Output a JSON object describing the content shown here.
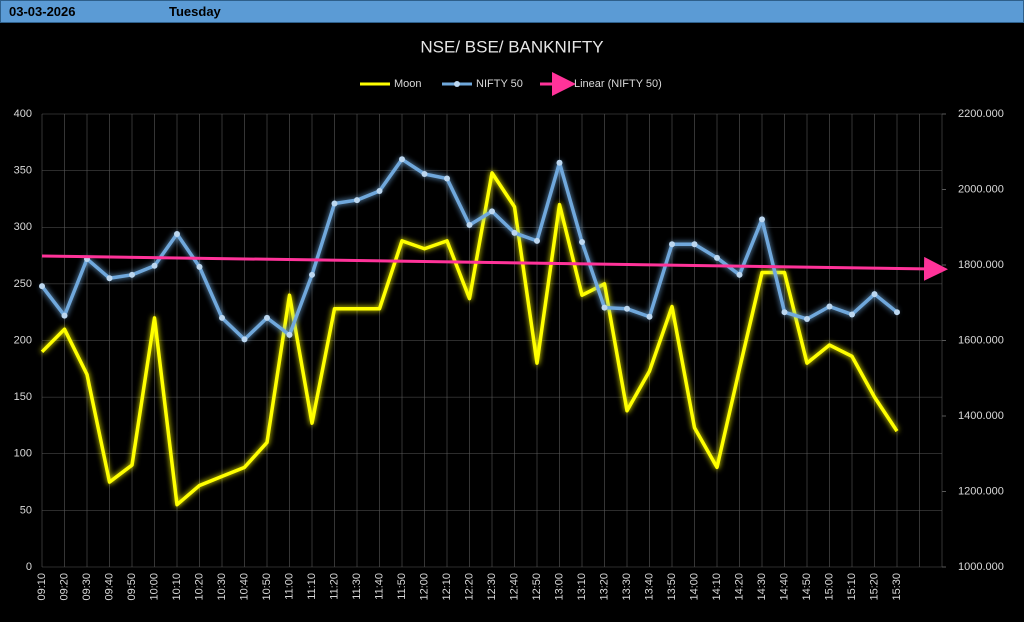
{
  "header": {
    "date": "03-03-2026",
    "day": "Tuesday"
  },
  "chart_data": {
    "type": "line",
    "title": "NSE/ BSE/ BANKNIFTY",
    "categories": [
      "09:10",
      "09:20",
      "09:30",
      "09:40",
      "09:50",
      "10:00",
      "10:10",
      "10:20",
      "10:30",
      "10:40",
      "10:50",
      "11:00",
      "11:10",
      "11:20",
      "11:30",
      "11:40",
      "11:50",
      "12:00",
      "12:10",
      "12:20",
      "12:30",
      "12:40",
      "12:50",
      "13:00",
      "13:10",
      "13:20",
      "13:30",
      "13:40",
      "13:50",
      "14:00",
      "14:10",
      "14:20",
      "14:30",
      "14:40",
      "14:50",
      "15:00",
      "15:10",
      "15:20",
      "15:30",
      null,
      null
    ],
    "series": [
      {
        "name": "Moon",
        "color": "#ffff00",
        "values": [
          190,
          210,
          170,
          75,
          90,
          220,
          55,
          72,
          80,
          88,
          110,
          240,
          127,
          228,
          228,
          228,
          288,
          281,
          288,
          237,
          348,
          318,
          180,
          320,
          240,
          250,
          138,
          173,
          230,
          123,
          88,
          175,
          260,
          260,
          180,
          196,
          186,
          150,
          120,
          null,
          null
        ]
      },
      {
        "name": "NIFTY 50",
        "color": "#6fa8dc",
        "axis": "y2",
        "markers": true,
        "values": [
          1744,
          1666,
          1816,
          1765,
          1774,
          1798,
          1882,
          1795,
          1660,
          1603,
          1660,
          1615,
          1774,
          1963,
          1972,
          1996,
          2080,
          2041,
          2029,
          1906,
          1942,
          1885,
          1864,
          2071,
          1861,
          1687,
          1684,
          1663,
          1855,
          1855,
          1819,
          1774,
          1921,
          1675,
          1657,
          1690,
          1669,
          1723,
          1675,
          null,
          null
        ]
      }
    ],
    "trendline": {
      "name": "Linear (NIFTY 50)",
      "color": "#ff3399",
      "axis": "y2",
      "values": [
        1824,
        1789
      ]
    },
    "ylim": [
      0,
      400
    ],
    "yticks": [
      0,
      50,
      100,
      150,
      200,
      250,
      300,
      350,
      400
    ],
    "y2lim": [
      1000,
      2200
    ],
    "y2ticks": [
      {
        "value": 1000,
        "label": "1000.000"
      },
      {
        "value": 1200,
        "label": "1200.000"
      },
      {
        "value": 1400,
        "label": "1400.000"
      },
      {
        "value": 1600,
        "label": "1600.000"
      },
      {
        "value": 1800,
        "label": "1800.000"
      },
      {
        "value": 2000,
        "label": "2000.000"
      },
      {
        "value": 2200,
        "label": "2200.000"
      }
    ],
    "grid": true
  }
}
